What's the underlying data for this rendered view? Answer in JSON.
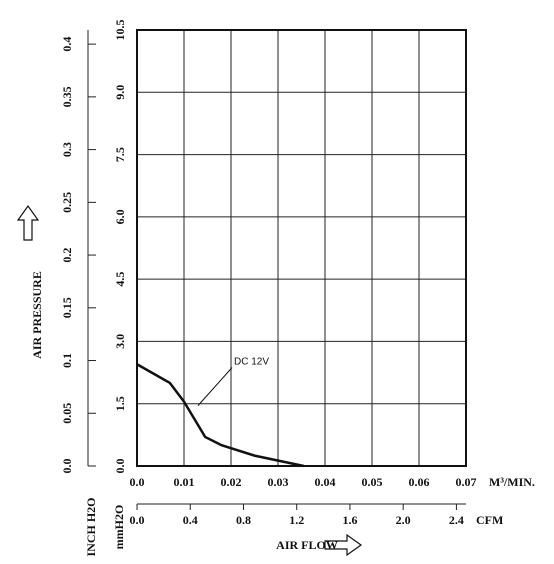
{
  "chart_data": {
    "type": "line",
    "y_label": "AIR PRESSURE",
    "x_label": "AIR FLOW",
    "y_unit": "mmH2O",
    "y2_unit": "INCH H2O",
    "x_unit": "M³/MIN.",
    "x2_unit": "CFM",
    "x": [
      0,
      0.007,
      0.01,
      0.0145,
      0.018,
      0.025,
      0.0355
    ],
    "series": [
      {
        "name": "DC 12V",
        "color": "#111111",
        "values": [
          2.45,
          2.0,
          1.55,
          0.7,
          0.5,
          0.25,
          0
        ]
      }
    ],
    "xlim": [
      0,
      0.07
    ],
    "xticks": [
      {
        "value": 0,
        "label": "0.0"
      },
      0.01,
      0.02,
      0.03,
      0.04,
      0.05,
      0.06,
      0.07
    ],
    "x2lim": [
      0,
      2.472
    ],
    "x2ticks": [
      {
        "value": 0,
        "label": "0.0"
      },
      0.4,
      0.8,
      1.2,
      1.6,
      {
        "value": 2,
        "label": "2.0"
      },
      2.4
    ],
    "ylim": [
      0,
      10.5
    ],
    "yticks": [
      {
        "value": 0,
        "label": "0.0"
      },
      1.5,
      {
        "value": 3,
        "label": "3.0"
      },
      4.5,
      {
        "value": 6,
        "label": "6.0"
      },
      7.5,
      {
        "value": 9,
        "label": "9.0"
      },
      10.5
    ],
    "y2lim": [
      0,
      0.4134
    ],
    "y2ticks": [
      {
        "value": 0,
        "label": "0.0"
      },
      0.05,
      0.1,
      0.15,
      0.2,
      0.25,
      0.3,
      0.35,
      0.4
    ],
    "grid": true
  }
}
